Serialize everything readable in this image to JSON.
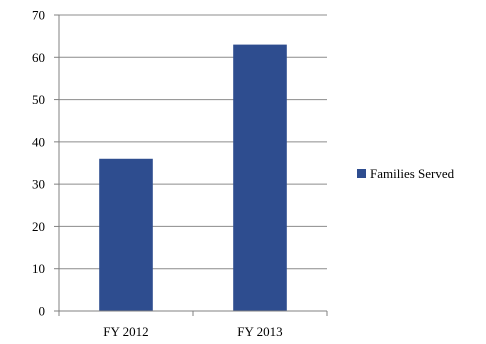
{
  "chart_data": {
    "type": "bar",
    "categories": [
      "FY 2012",
      "FY 2013"
    ],
    "series": [
      {
        "name": "Families Served",
        "values": [
          36,
          63
        ],
        "color": "#2e4d8f"
      }
    ],
    "ylim": [
      0,
      70
    ],
    "yticks": [
      0,
      10,
      20,
      30,
      40,
      50,
      60,
      70
    ],
    "grid": true,
    "legend": "right",
    "title": "",
    "xlabel": "",
    "ylabel": ""
  }
}
